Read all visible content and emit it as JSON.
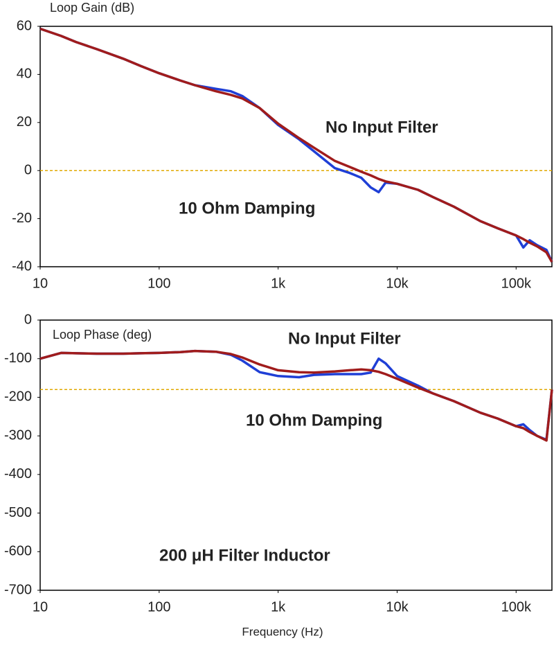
{
  "chart_data": [
    {
      "type": "line",
      "title": "Loop Gain (dB)",
      "xscale": "log",
      "x": [
        10,
        15,
        20,
        30,
        50,
        70,
        100,
        150,
        200,
        300,
        400,
        500,
        700,
        1000,
        1500,
        2000,
        3000,
        4000,
        5000,
        6000,
        7000,
        8000,
        10000,
        15000,
        20000,
        30000,
        50000,
        70000,
        100000,
        115000,
        130000,
        150000,
        180000,
        200000
      ],
      "series": [
        {
          "name": "10 Ohm Damping",
          "color": "#1f3fd6",
          "values": [
            59,
            56,
            53.5,
            50.5,
            46.5,
            43.5,
            40.5,
            37.5,
            35.5,
            34,
            33,
            31,
            26,
            19,
            13,
            8,
            1,
            -1,
            -3,
            -7,
            -9,
            -5,
            -5.5,
            -8,
            -11,
            -15,
            -21,
            -24,
            -27,
            -32,
            -29,
            -31,
            -33,
            -38
          ]
        },
        {
          "name": "No Input Filter",
          "color": "#a01c1c",
          "values": [
            59,
            56,
            53.5,
            50.5,
            46.5,
            43.5,
            40.5,
            37.5,
            35.5,
            33,
            31.5,
            30,
            26,
            19.5,
            13.5,
            9.5,
            4,
            1.5,
            -0.5,
            -2,
            -3.5,
            -4.5,
            -5.5,
            -8,
            -11,
            -15,
            -21,
            -24,
            -27,
            -28.5,
            -30,
            -31.5,
            -34,
            -38
          ]
        }
      ],
      "xlim": [
        10,
        200000
      ],
      "ylim": [
        -40,
        60
      ],
      "xticks": [
        10,
        100,
        {
          "value": 1000,
          "label": "1k"
        },
        {
          "value": 10000,
          "label": "10k"
        },
        {
          "value": 100000,
          "label": "100k"
        }
      ],
      "yticks": [
        -40,
        -20,
        0,
        20,
        40,
        60
      ],
      "reference_line": 0
    },
    {
      "type": "line",
      "title": "Loop Phase (deg)",
      "xscale": "log",
      "xlabel": "Frequency (Hz)",
      "annotation": "200 μH Filter Inductor",
      "x": [
        10,
        15,
        20,
        30,
        50,
        70,
        100,
        150,
        200,
        300,
        400,
        500,
        700,
        1000,
        1500,
        2000,
        3000,
        4000,
        5000,
        6000,
        7000,
        8000,
        10000,
        15000,
        20000,
        30000,
        50000,
        70000,
        100000,
        115000,
        130000,
        150000,
        180000,
        200000
      ],
      "series": [
        {
          "name": "10 Ohm Damping",
          "color": "#1f3fd6",
          "values": [
            -100,
            -85,
            -86,
            -87,
            -87,
            -86,
            -85,
            -83,
            -80,
            -82,
            -90,
            -105,
            -135,
            -145,
            -148,
            -142,
            -140,
            -140,
            -140,
            -136,
            -100,
            -112,
            -145,
            -170,
            -190,
            -210,
            -240,
            -255,
            -275,
            -270,
            -285,
            -300,
            -310,
            -180
          ]
        },
        {
          "name": "No Input Filter",
          "color": "#a01c1c",
          "values": [
            -100,
            -85,
            -86,
            -87,
            -87,
            -86,
            -85,
            -83,
            -80,
            -82,
            -88,
            -97,
            -115,
            -130,
            -135,
            -136,
            -133,
            -130,
            -128,
            -130,
            -134,
            -140,
            -152,
            -175,
            -190,
            -210,
            -240,
            -255,
            -275,
            -280,
            -290,
            -300,
            -312,
            -180
          ]
        }
      ],
      "xlim": [
        10,
        200000
      ],
      "ylim": [
        -700,
        0
      ],
      "xticks": [
        10,
        100,
        {
          "value": 1000,
          "label": "1k"
        },
        {
          "value": 10000,
          "label": "10k"
        },
        {
          "value": 100000,
          "label": "100k"
        }
      ],
      "yticks": [
        -700,
        -600,
        -500,
        -400,
        -300,
        -200,
        -100,
        0
      ],
      "reference_line": -180
    }
  ]
}
